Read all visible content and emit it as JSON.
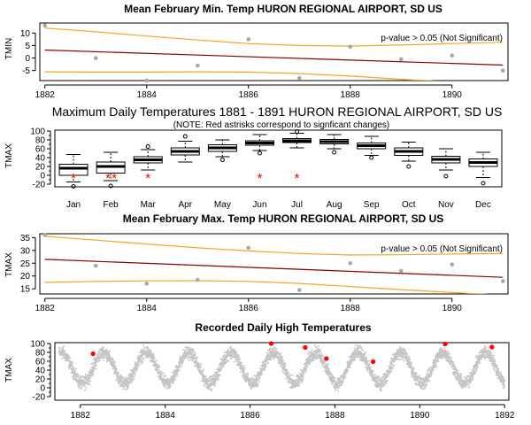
{
  "chart_data": [
    {
      "id": "tmin",
      "type": "scatter",
      "title": "Mean February Min. Temp HURON REGIONAL AIRPORT, SD US",
      "ylabel": "TMIN",
      "xlim": [
        1881.9,
        1891.1
      ],
      "ylim": [
        -9,
        14
      ],
      "xticks": [
        1882,
        1884,
        1886,
        1888,
        1890
      ],
      "yticks": [
        -5,
        0,
        5,
        10
      ],
      "annotation": "p-value > 0.05 (Not Significant)",
      "points": {
        "x": [
          1882,
          1883,
          1884,
          1885,
          1886,
          1887,
          1888,
          1889,
          1890,
          1891
        ],
        "y": [
          13,
          0,
          -9,
          -3,
          7.5,
          -8,
          4.5,
          -0.5,
          1,
          -5
        ]
      },
      "trend": {
        "x": [
          1882,
          1891
        ],
        "y": [
          3.2,
          -2.8
        ]
      },
      "upper_band": {
        "x": [
          1882,
          1883,
          1884,
          1885,
          1886,
          1887,
          1888,
          1889,
          1890,
          1891
        ],
        "y": [
          12,
          10.5,
          8.8,
          7.2,
          5.8,
          5,
          4.8,
          5.2,
          5.8,
          6.3
        ]
      },
      "lower_band": {
        "x": [
          1882,
          1883,
          1884,
          1885,
          1886,
          1887,
          1888,
          1889,
          1890,
          1891
        ],
        "y": [
          -5.5,
          -5.6,
          -5.6,
          -5.5,
          -5.6,
          -6.2,
          -7.2,
          -8.5,
          -9.5,
          -10.5
        ]
      }
    },
    {
      "id": "box",
      "type": "box",
      "title": "Maximum Daily Temperatures 1881 - 1891 HURON REGIONAL AIRPORT, SD US",
      "subtitle": "(NOTE: Red astrisks correspond to signficant changes)",
      "ylabel": "TMAX",
      "ylim": [
        -26,
        102
      ],
      "yticks": [
        -20,
        0,
        20,
        40,
        60,
        80,
        100
      ],
      "yticks_minor": [
        -10,
        10,
        30,
        50,
        70,
        90
      ],
      "categories": [
        "Jan",
        "Feb",
        "Mar",
        "Apr",
        "May",
        "Jun",
        "Jul",
        "Aug",
        "Sep",
        "Oct",
        "Nov",
        "Dec"
      ],
      "boxes": [
        {
          "min": -15,
          "q1": 0,
          "median": 16,
          "q3": 25,
          "max": 47,
          "outliers": [
            -25
          ]
        },
        {
          "min": -12,
          "q1": 5,
          "median": 20,
          "q3": 30,
          "max": 52,
          "outliers": [
            -24
          ]
        },
        {
          "min": 12,
          "q1": 28,
          "median": 35,
          "q3": 42,
          "max": 58,
          "outliers": [
            65
          ]
        },
        {
          "min": 30,
          "q1": 46,
          "median": 54,
          "q3": 62,
          "max": 77,
          "outliers": [
            88
          ]
        },
        {
          "min": 42,
          "q1": 54,
          "median": 62,
          "q3": 69,
          "max": 80,
          "outliers": [
            35
          ]
        },
        {
          "min": 56,
          "q1": 68,
          "median": 73,
          "q3": 78,
          "max": 92,
          "outliers": [
            50
          ]
        },
        {
          "min": 62,
          "q1": 74,
          "median": 78,
          "q3": 83,
          "max": 95,
          "outliers": [
            99
          ]
        },
        {
          "min": 60,
          "q1": 71,
          "median": 76,
          "q3": 81,
          "max": 92,
          "outliers": [
            52
          ]
        },
        {
          "min": 45,
          "q1": 60,
          "median": 67,
          "q3": 73,
          "max": 88,
          "outliers": [
            40
          ]
        },
        {
          "min": 32,
          "q1": 45,
          "median": 54,
          "q3": 62,
          "max": 75,
          "outliers": [
            20
          ]
        },
        {
          "min": 12,
          "q1": 28,
          "median": 36,
          "q3": 43,
          "max": 60,
          "outliers": [
            -2
          ]
        },
        {
          "min": -5,
          "q1": 20,
          "median": 29,
          "q3": 37,
          "max": 52,
          "outliers": [
            -18
          ]
        }
      ],
      "asterisks": [
        {
          "month": "Jan",
          "value": 0
        },
        {
          "month": "Feb",
          "value": 0
        },
        {
          "month": "Feb",
          "value": 0
        },
        {
          "month": "Mar",
          "value": 0
        },
        {
          "month": "Jun",
          "value": 0
        },
        {
          "month": "Jul",
          "value": 0
        }
      ]
    },
    {
      "id": "tmax",
      "type": "scatter",
      "title": "Mean February Max. Temp HURON REGIONAL AIRPORT, SD US",
      "ylabel": "TMAX",
      "xlim": [
        1881.9,
        1891.1
      ],
      "ylim": [
        13,
        36.5
      ],
      "xticks": [
        1882,
        1884,
        1886,
        1888,
        1890
      ],
      "yticks": [
        15,
        20,
        25,
        30,
        35
      ],
      "annotation": "p-value > 0.05 (Not Significant)",
      "points": {
        "x": [
          1882,
          1883,
          1884,
          1885,
          1886,
          1887,
          1888,
          1889,
          1890,
          1891
        ],
        "y": [
          36,
          24,
          17,
          18.5,
          31,
          14.5,
          25,
          22,
          24.5,
          18
        ]
      },
      "trend": {
        "x": [
          1882,
          1891
        ],
        "y": [
          26.5,
          19.5
        ]
      },
      "upper_band": {
        "x": [
          1882,
          1883,
          1884,
          1885,
          1886,
          1887,
          1888,
          1889,
          1890,
          1891
        ],
        "y": [
          35.5,
          34,
          32.5,
          31,
          29.8,
          28.8,
          28.2,
          28.3,
          28.6,
          28.8
        ]
      },
      "lower_band": {
        "x": [
          1882,
          1883,
          1884,
          1885,
          1886,
          1887,
          1888,
          1889,
          1890,
          1891
        ],
        "y": [
          17.5,
          17.9,
          18.1,
          18.2,
          17.9,
          17.1,
          15.9,
          14.7,
          13.6,
          12.5
        ]
      }
    },
    {
      "id": "daily",
      "type": "scatter",
      "title": "Recorded Daily High Temperatures",
      "ylabel": "TMAX",
      "xlim": [
        1881.4,
        1892.1
      ],
      "ylim": [
        -28,
        102
      ],
      "xticks": [
        1882,
        1884,
        1886,
        1888,
        1890,
        1892
      ],
      "yticks": [
        -20,
        0,
        20,
        40,
        60,
        80,
        100
      ],
      "yticks_minor": [
        -10,
        10,
        30,
        50,
        70,
        90
      ],
      "series_range": [
        1881.5,
        1892
      ],
      "seasonal": {
        "mean": 45,
        "amplitude": 35,
        "peak_fraction": 0.55,
        "noise": 14
      },
      "records": {
        "x": [
          1882.3,
          1886.5,
          1887.3,
          1887.8,
          1888.9,
          1890.6,
          1891.7
        ],
        "y": [
          77,
          100,
          91,
          66,
          59,
          99,
          92
        ]
      }
    }
  ]
}
